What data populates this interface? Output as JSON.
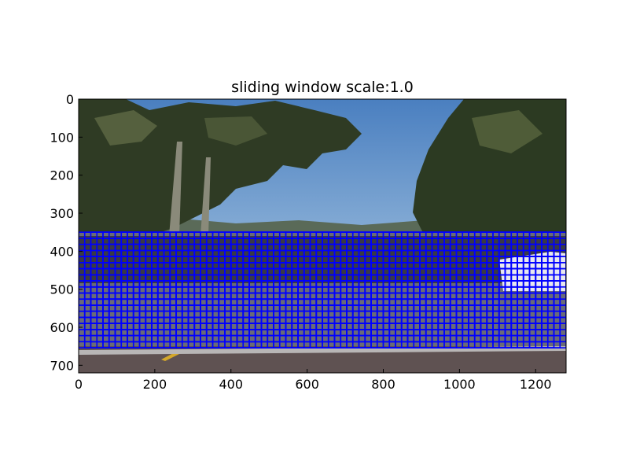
{
  "title": "sliding window scale:1.0",
  "image": {
    "width": 1280,
    "height": 720,
    "description_colors": {
      "sky": "#5c88be",
      "tree": "#2f3b24",
      "road": "#5f5252",
      "lane_line": "#d4a82a",
      "window_box": "#0000ff"
    }
  },
  "axes": {
    "x_ticks": [
      {
        "value": 0,
        "label": "0"
      },
      {
        "value": 200,
        "label": "200"
      },
      {
        "value": 400,
        "label": "400"
      },
      {
        "value": 600,
        "label": "600"
      },
      {
        "value": 800,
        "label": "800"
      },
      {
        "value": 1000,
        "label": "1000"
      },
      {
        "value": 1200,
        "label": "1200"
      }
    ],
    "y_ticks": [
      {
        "value": 0,
        "label": "0"
      },
      {
        "value": 100,
        "label": "100"
      },
      {
        "value": 200,
        "label": "200"
      },
      {
        "value": 300,
        "label": "300"
      },
      {
        "value": 400,
        "label": "400"
      },
      {
        "value": 500,
        "label": "500"
      },
      {
        "value": 600,
        "label": "600"
      },
      {
        "value": 700,
        "label": "700"
      }
    ],
    "xlim": [
      0,
      1280
    ],
    "ylim": [
      720,
      0
    ]
  },
  "sliding_window": {
    "scale": 1.0,
    "window_size": 64,
    "step": 16,
    "y_start": 350,
    "y_stop": 656,
    "x_start": 0,
    "x_stop": 1280
  }
}
